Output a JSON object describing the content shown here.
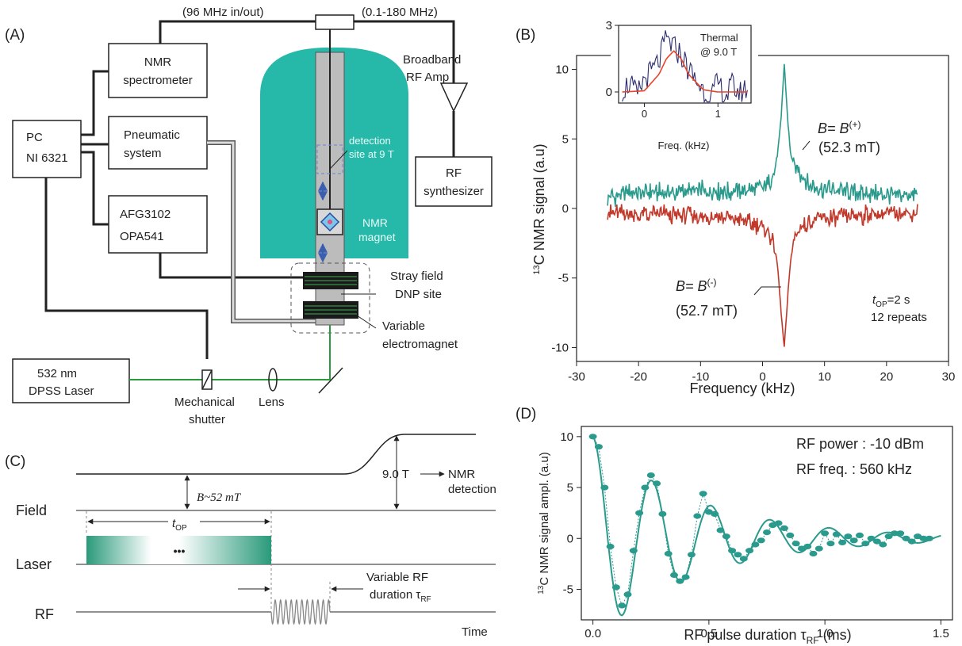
{
  "panel_a": {
    "label": "(A)",
    "top_left": "(96 MHz in/out)",
    "top_right": "(0.1-180 MHz)",
    "nmr_spec": [
      "NMR",
      "spectrometer"
    ],
    "pc": [
      "PC",
      "NI 6321"
    ],
    "pneumatic": [
      "Pneumatic",
      "system"
    ],
    "afg": [
      "AFG3102",
      "OPA541"
    ],
    "amp": [
      "Broadband",
      "RF Amp"
    ],
    "synth": [
      "RF",
      "synthesizer"
    ],
    "detection": [
      "detection",
      "site at 9 T"
    ],
    "magnet": [
      "NMR",
      "magnet"
    ],
    "stray": [
      "Stray field",
      "DNP site"
    ],
    "electromagnet": [
      "Variable",
      "electromagnet"
    ],
    "laser": [
      "532 nm",
      "DPSS Laser"
    ],
    "shutter": [
      "Mechanical",
      "shutter"
    ],
    "lens": "Lens"
  },
  "panel_b": {
    "label": "(B)",
    "ylabel_sup": "13",
    "ylabel": "C NMR signal (a.u)",
    "xlabel": "Frequency (kHz)",
    "xticks": [
      "-30",
      "-20",
      "-10",
      "0",
      "10",
      "20",
      "30"
    ],
    "yticks": [
      "10",
      "5",
      "0",
      "-5",
      "-10"
    ],
    "plus_label": "B= B",
    "plus_sup": "(+)",
    "plus_field": "(52.3 mT)",
    "minus_label": "B= B",
    "minus_sup": "(-)",
    "minus_field": "(52.7 mT)",
    "top_main": "t",
    "top_sub": "OP",
    "top_rest": "=2 s",
    "repeats": "12 repeats",
    "inset_title": [
      "Thermal",
      "@ 9.0 T"
    ],
    "inset_xlabel": "Freq. (kHz)",
    "inset_xticks": [
      "0",
      "1"
    ],
    "inset_yticks": [
      "3",
      "0"
    ]
  },
  "panel_c": {
    "label": "(C)",
    "field": "Field",
    "laser": "Laser",
    "rf": "RF",
    "time": "Time",
    "b_label": "B~52 mT",
    "t_main": "9.0 T",
    "nmr_det": [
      "NMR",
      "detection"
    ],
    "top_main": "t",
    "top_sub": "OP",
    "dots": "•••",
    "var_rf": [
      "Variable RF",
      "duration τ"
    ],
    "var_rf_sub": "RF"
  },
  "panel_d": {
    "label": "(D)",
    "ylabel_sup": "13",
    "ylabel": "C NMR signal ampl. (a.u)",
    "xlabel": "RF pulse duration τ",
    "xlabel_sub": "RF",
    "xlabel_unit": " (ms)",
    "rf_power": "RF power : -10 dBm",
    "rf_freq": "RF freq. : 560 kHz",
    "xticks": [
      "0.0",
      "0.5",
      "1.0",
      "1.5"
    ],
    "yticks": [
      "10",
      "5",
      "0",
      "-5"
    ]
  },
  "colors": {
    "teal": "#2a9a8c",
    "red": "#c0392b",
    "magnet": "#26b8a8",
    "laser_green": "#2a9a3a",
    "navy": "#2c2d6e",
    "fit_red": "#e8452a"
  },
  "chart_data": [
    {
      "type": "line",
      "xlabel": "Frequency (kHz)",
      "ylabel": "13C NMR signal (a.u)",
      "xlim": [
        -30,
        30
      ],
      "ylim": [
        -11,
        11
      ],
      "series": [
        {
          "name": "B= B(+) (52.3 mT)",
          "x": [
            -25,
            -20,
            -15,
            -10,
            -5,
            0,
            1,
            2,
            2.5,
            3,
            3.5,
            4,
            4.5,
            5,
            6,
            8,
            10,
            15,
            20,
            25
          ],
          "values": [
            0.8,
            1.2,
            1.1,
            1.3,
            1.2,
            1.5,
            1.8,
            2.8,
            4.2,
            6.5,
            10.4,
            6.8,
            4.0,
            3.2,
            2.5,
            1.6,
            1.4,
            1.1,
            1.0,
            1.0
          ]
        },
        {
          "name": "B= B(-) (52.7 mT)",
          "x": [
            -25,
            -20,
            -15,
            -10,
            -5,
            0,
            1,
            2,
            2.5,
            3,
            3.5,
            4,
            4.5,
            5,
            6,
            8,
            10,
            15,
            20,
            25
          ],
          "values": [
            -0.2,
            -0.5,
            -0.4,
            -0.6,
            -0.7,
            -1.3,
            -1.7,
            -2.8,
            -4.5,
            -7.5,
            -10.0,
            -6.8,
            -3.8,
            -2.4,
            -1.4,
            -0.9,
            -0.7,
            -0.5,
            -0.4,
            -0.3
          ]
        }
      ]
    },
    {
      "type": "line",
      "title": "Thermal @ 9.0 T",
      "xlabel": "Freq. (kHz)",
      "xlim": [
        -0.35,
        1.45
      ],
      "ylim": [
        -0.5,
        3
      ],
      "series": [
        {
          "name": "data",
          "x": [
            -0.3,
            -0.2,
            -0.1,
            0,
            0.1,
            0.2,
            0.3,
            0.4,
            0.5,
            0.6,
            0.7,
            0.8,
            0.9,
            1.0,
            1.1,
            1.2,
            1.3,
            1.4
          ],
          "values": [
            0.1,
            0.4,
            -0.2,
            0.6,
            0.9,
            1.4,
            2.4,
            2.0,
            1.7,
            1.0,
            0.5,
            0.1,
            -0.3,
            0.4,
            -0.2,
            0.3,
            -0.1,
            0.2
          ]
        },
        {
          "name": "fit",
          "x": [
            -0.3,
            0,
            0.2,
            0.3,
            0.4,
            0.5,
            0.6,
            0.8,
            1.0,
            1.4
          ],
          "values": [
            0,
            0.05,
            0.8,
            1.5,
            1.85,
            1.5,
            0.8,
            0.1,
            0,
            0
          ]
        }
      ]
    },
    {
      "type": "scatter",
      "xlabel": "RF pulse duration τRF (ms)",
      "ylabel": "13C NMR signal ampl. (a.u)",
      "xlim": [
        -0.05,
        1.55
      ],
      "ylim": [
        -8,
        11
      ],
      "series": [
        {
          "name": "data",
          "x": [
            0,
            0.025,
            0.05,
            0.075,
            0.1,
            0.125,
            0.15,
            0.175,
            0.2,
            0.225,
            0.25,
            0.275,
            0.3,
            0.325,
            0.35,
            0.375,
            0.4,
            0.425,
            0.45,
            0.475,
            0.5,
            0.525,
            0.55,
            0.575,
            0.6,
            0.625,
            0.65,
            0.675,
            0.7,
            0.725,
            0.75,
            0.775,
            0.8,
            0.825,
            0.85,
            0.875,
            0.9,
            0.925,
            0.95,
            0.975,
            1.0,
            1.025,
            1.05,
            1.075,
            1.1,
            1.125,
            1.15,
            1.175,
            1.2,
            1.225,
            1.25,
            1.275,
            1.3,
            1.325,
            1.35,
            1.375,
            1.4,
            1.425,
            1.45
          ],
          "values": [
            10,
            9,
            5,
            -0.8,
            -4.8,
            -6.6,
            -5.5,
            -1.2,
            2.5,
            5,
            6.2,
            5.4,
            2.4,
            -1.5,
            -3.6,
            -4.2,
            -3.8,
            -1.6,
            2.2,
            4.4,
            2.6,
            2.4,
            0.8,
            0.2,
            -1.2,
            -1.6,
            -2.0,
            -1.2,
            -0.6,
            -0.2,
            0.6,
            1.3,
            1.5,
            1.0,
            0.3,
            -0.5,
            -1.0,
            -0.8,
            -1.5,
            -1.0,
            0.5,
            -0.5,
            0.4,
            -0.4,
            0.2,
            -0.2,
            0.3,
            -0.5,
            0,
            -0.3,
            -0.6,
            0.2,
            0.5,
            0.5,
            0,
            -0.3,
            0.2,
            0,
            0
          ]
        },
        {
          "name": "fit",
          "type": "damped-cosine",
          "amplitude": 10,
          "period_ms": 0.255,
          "decay_ms": 0.45
        }
      ]
    }
  ]
}
